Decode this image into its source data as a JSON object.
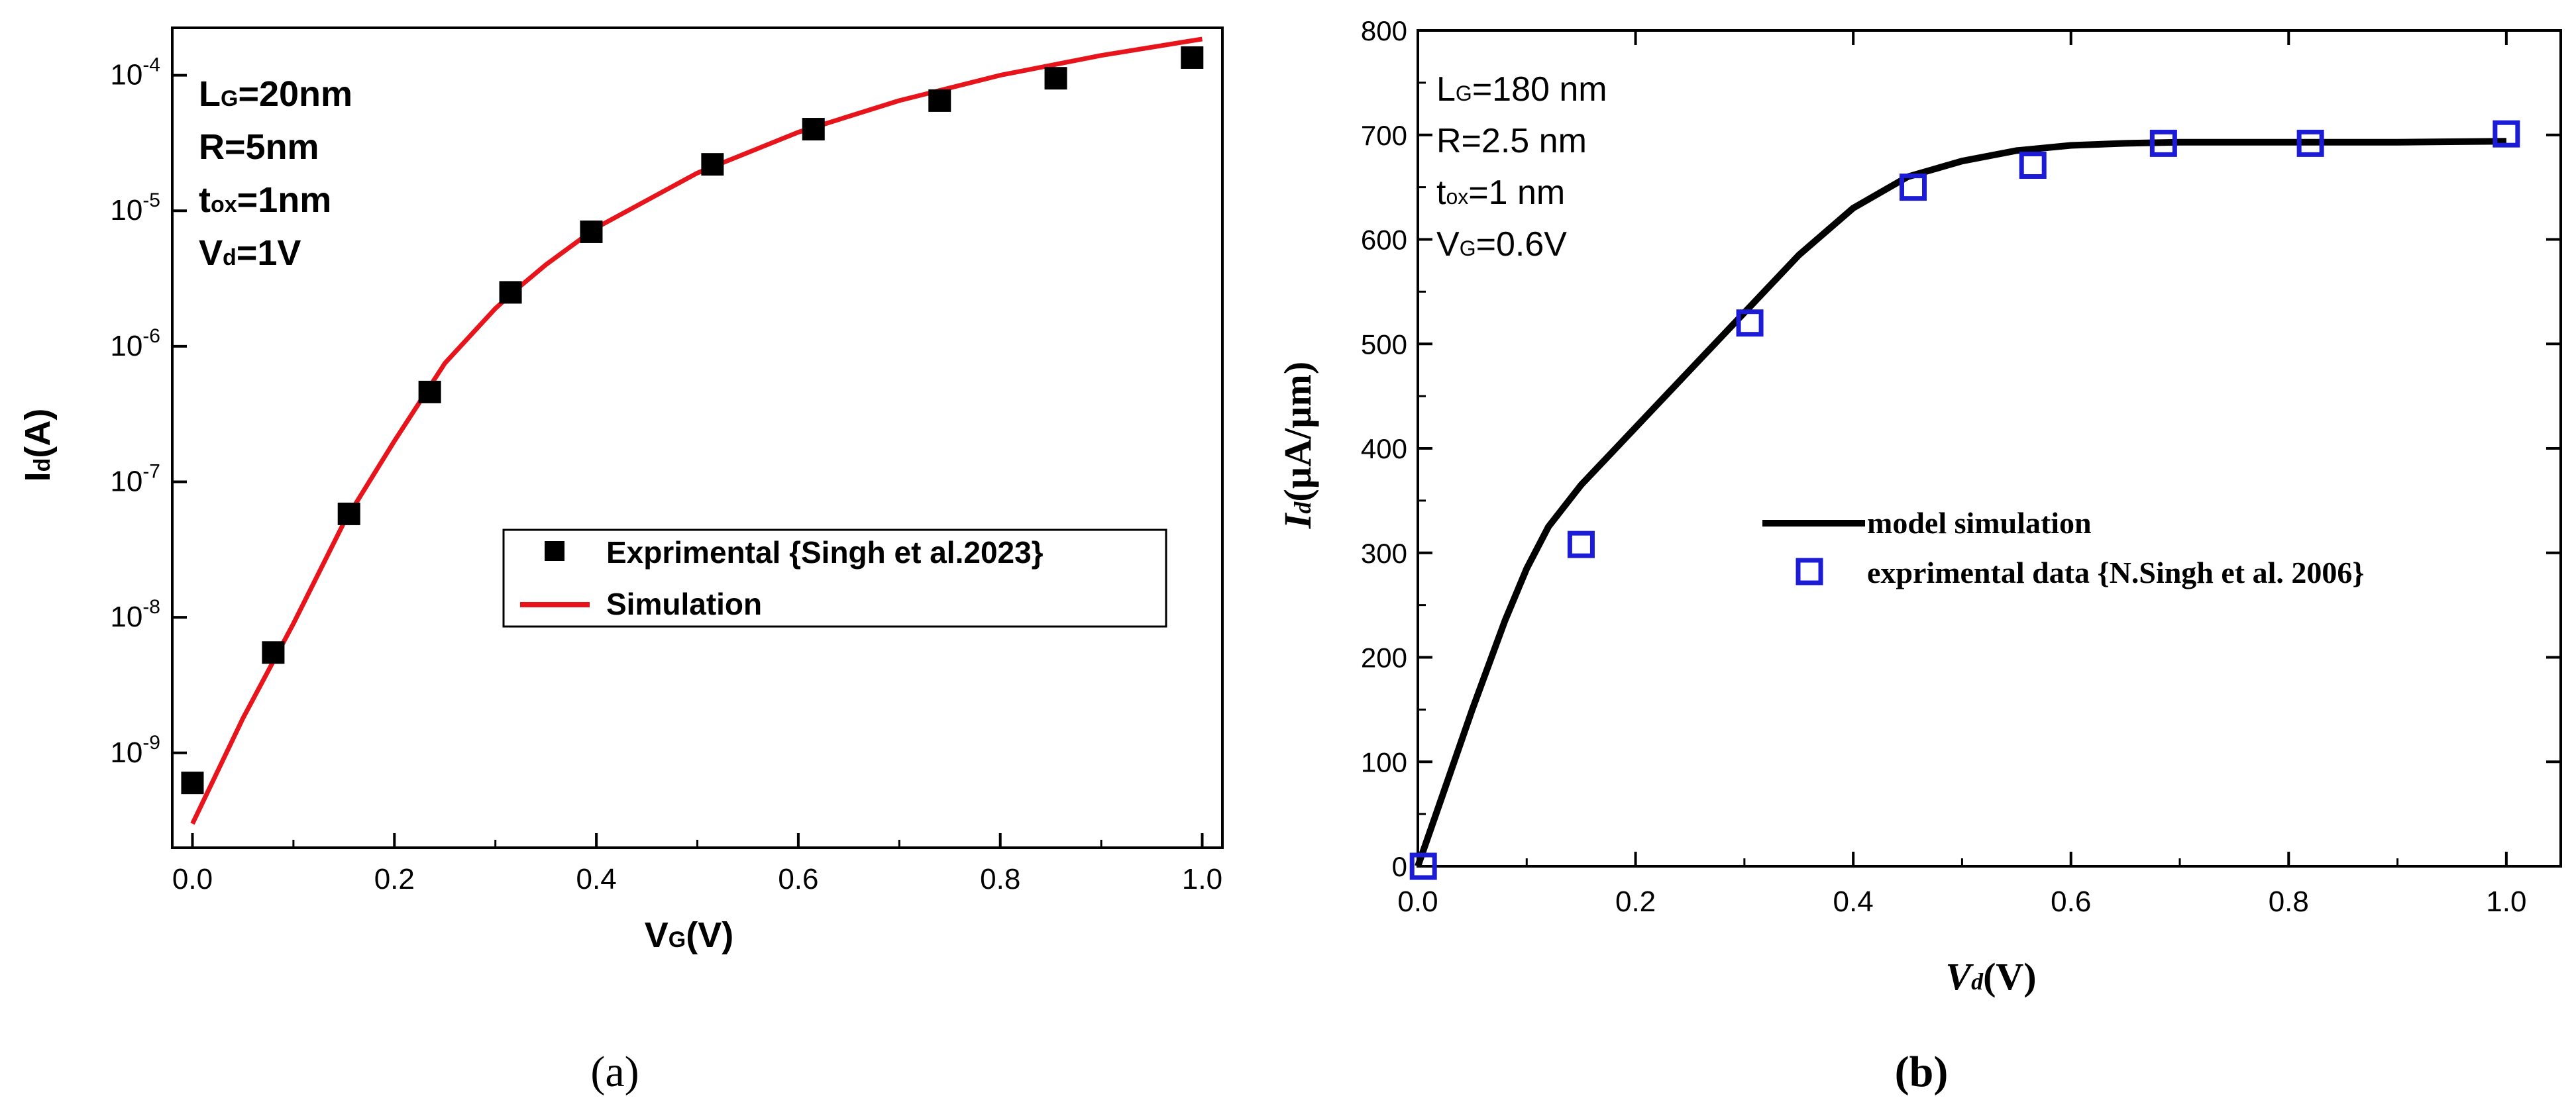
{
  "colors": {
    "axis": "#000000",
    "sim_a": "#e8141c",
    "marker_a": "#000000",
    "line_b": "#000000",
    "marker_b": "#1c1cd6"
  },
  "chart_data": [
    {
      "type": "scatter",
      "panel_label": "(a)",
      "xlabel": "VG(V)",
      "xlabel_main": "V",
      "xlabel_sub": "G",
      "xlabel_tail": "(V)",
      "ylabel": "Id(A)",
      "ylabel_main": "I",
      "ylabel_sub": "d",
      "ylabel_tail": "(A)",
      "y_scale": "log",
      "xlim": [
        -0.02,
        1.02
      ],
      "ylim_exp": [
        -9.7,
        -3.65
      ],
      "x_ticks": [
        "0.0",
        "0.2",
        "0.4",
        "0.6",
        "0.8",
        "1.0"
      ],
      "x_tick_values": [
        0.0,
        0.2,
        0.4,
        0.6,
        0.8,
        1.0
      ],
      "y_tick_exponents": [
        -9,
        -8,
        -7,
        -6,
        -5,
        -4
      ],
      "y_tick_base": "10",
      "y_tick_labels": [
        "-9",
        "-8",
        "-7",
        "-6",
        "-5",
        "-4"
      ],
      "annotations": [
        {
          "main": "L",
          "sub": "G",
          "tail": "=20nm"
        },
        {
          "main": "R=5nm",
          "sub": "",
          "tail": ""
        },
        {
          "main": "t",
          "sub": "ox",
          "tail": "=1nm"
        },
        {
          "main": "V",
          "sub": "d",
          "tail": "=1V"
        }
      ],
      "legend_position": "center-right",
      "series": [
        {
          "name": "Exprimental {Singh et al.2023}",
          "kind": "markers",
          "marker": "filled-square",
          "x": [
            0.0,
            0.08,
            0.155,
            0.235,
            0.315,
            0.395,
            0.515,
            0.615,
            0.74,
            0.855,
            0.99
          ],
          "y": [
            6e-10,
            5.5e-09,
            5.8e-08,
            4.6e-07,
            2.5e-06,
            7e-06,
            2.2e-05,
            4e-05,
            6.5e-05,
            9.5e-05,
            0.000135
          ]
        },
        {
          "name": "Simulation",
          "kind": "line",
          "x": [
            0.0,
            0.05,
            0.1,
            0.15,
            0.2,
            0.25,
            0.3,
            0.32,
            0.35,
            0.4,
            0.5,
            0.6,
            0.7,
            0.8,
            0.9,
            1.0
          ],
          "y": [
            3e-10,
            1.8e-09,
            9e-09,
            5e-08,
            2e-07,
            7.5e-07,
            1.9e-06,
            2.6e-06,
            4e-06,
            7.5e-06,
            1.9e-05,
            3.8e-05,
            6.5e-05,
            0.0001,
            0.00014,
            0.000185
          ]
        }
      ]
    },
    {
      "type": "scatter",
      "panel_label": "(b)",
      "xlabel": "Vd(V)",
      "xlabel_main": "V",
      "xlabel_sub": "d",
      "xlabel_tail": "(V)",
      "ylabel": "Id(µA/µm)",
      "ylabel_main": "I",
      "ylabel_sub": "d",
      "ylabel_tail": "(µA/µm)",
      "y_scale": "linear",
      "xlim": [
        0,
        1.05
      ],
      "ylim": [
        0,
        800
      ],
      "x_ticks": [
        "0.0",
        "0.2",
        "0.4",
        "0.6",
        "0.8",
        "1.0"
      ],
      "x_tick_values": [
        0.0,
        0.2,
        0.4,
        0.6,
        0.8,
        1.0
      ],
      "y_ticks": [
        "0",
        "100",
        "200",
        "300",
        "400",
        "500",
        "600",
        "700",
        "800"
      ],
      "y_tick_values": [
        0,
        100,
        200,
        300,
        400,
        500,
        600,
        700,
        800
      ],
      "annotations": [
        {
          "main": "L",
          "sub": "G",
          "tail": "=180 nm"
        },
        {
          "main": "R=2.5 nm",
          "sub": "",
          "tail": ""
        },
        {
          "main": "t",
          "sub": "ox",
          "tail": "=1 nm"
        },
        {
          "main": "V",
          "sub": "G",
          "tail": "=0.6V"
        }
      ],
      "legend_position": "center-right",
      "series": [
        {
          "name": "model simulation",
          "kind": "line",
          "x": [
            0.0,
            0.02,
            0.05,
            0.08,
            0.1,
            0.12,
            0.15,
            0.2,
            0.25,
            0.3,
            0.35,
            0.4,
            0.45,
            0.5,
            0.55,
            0.6,
            0.65,
            0.7,
            0.8,
            0.9,
            1.0
          ],
          "y": [
            0,
            60,
            150,
            235,
            285,
            325,
            365,
            420,
            475,
            530,
            585,
            630,
            660,
            675,
            685,
            690,
            692,
            693,
            693,
            693,
            694
          ]
        },
        {
          "name": "exprimental data {N.Singh et al. 2006}",
          "kind": "markers",
          "marker": "open-square",
          "x": [
            0.005,
            0.15,
            0.305,
            0.455,
            0.565,
            0.685,
            0.82,
            1.0
          ],
          "y": [
            0,
            308,
            520,
            650,
            671,
            692,
            692,
            701
          ]
        }
      ]
    }
  ]
}
